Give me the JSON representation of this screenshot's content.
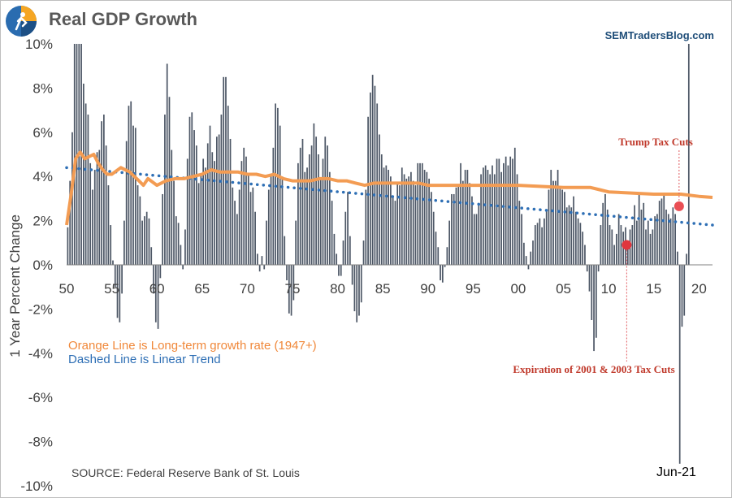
{
  "header": {
    "title": "Real GDP Growth",
    "site": "SEMTradersBlog.com"
  },
  "chart_data": {
    "type": "bar",
    "title": "Real GDP Growth",
    "ylabel": "1 Year Percent Change",
    "ylim": [
      -10,
      10
    ],
    "yticks": [
      "10%",
      "8%",
      "6%",
      "4%",
      "2%",
      "0%",
      "-2%",
      "-4%",
      "-6%",
      "-8%",
      "-10%"
    ],
    "xlim": [
      1950,
      2021.5
    ],
    "xticks": [
      {
        "year": 1950,
        "label": "50"
      },
      {
        "year": 1955,
        "label": "55"
      },
      {
        "year": 1960,
        "label": "60"
      },
      {
        "year": 1965,
        "label": "65"
      },
      {
        "year": 1970,
        "label": "70"
      },
      {
        "year": 1975,
        "label": "75"
      },
      {
        "year": 1980,
        "label": "80"
      },
      {
        "year": 1985,
        "label": "85"
      },
      {
        "year": 1990,
        "label": "90"
      },
      {
        "year": 1995,
        "label": "95"
      },
      {
        "year": 2000,
        "label": "00"
      },
      {
        "year": 2005,
        "label": "05"
      },
      {
        "year": 2010,
        "label": "10"
      },
      {
        "year": 2015,
        "label": "15"
      },
      {
        "year": 2020,
        "label": "20"
      }
    ],
    "bars": {
      "name": "1 Year Percent Change",
      "color": "#4d5766",
      "start_year": 1950,
      "step": 0.25,
      "values": [
        1.7,
        3.8,
        6.0,
        10.0,
        10.0,
        10.0,
        10.0,
        8.2,
        7.3,
        6.8,
        4.6,
        3.4,
        4.3,
        5.1,
        5.2,
        6.5,
        6.8,
        5.4,
        3.6,
        1.8,
        0.2,
        -1.0,
        -2.4,
        -2.6,
        -1.3,
        2.0,
        5.6,
        7.2,
        7.4,
        6.3,
        6.2,
        3.6,
        3.1,
        2.0,
        2.2,
        2.4,
        2.1,
        0.8,
        -1.3,
        -2.6,
        -2.9,
        -0.6,
        3.2,
        6.8,
        9.1,
        7.6,
        5.2,
        3.8,
        2.2,
        1.9,
        0.9,
        -0.2,
        1.6,
        4.8,
        6.7,
        6.9,
        6.1,
        5.4,
        3.7,
        4.1,
        4.8,
        4.4,
        5.5,
        6.3,
        5.1,
        4.7,
        5.8,
        5.9,
        6.8,
        8.5,
        8.5,
        7.2,
        5.7,
        3.5,
        2.9,
        2.3,
        3.4,
        4.7,
        5.3,
        4.9,
        4.1,
        3.3,
        3.5,
        2.4,
        0.5,
        -0.3,
        0.4,
        -0.2,
        2.0,
        3.4,
        4.1,
        5.3,
        7.3,
        7.1,
        6.3,
        4.0,
        1.3,
        -0.7,
        -2.2,
        -2.3,
        -1.6,
        2.0,
        4.6,
        5.3,
        5.7,
        4.2,
        4.4,
        5.0,
        5.4,
        6.4,
        5.8,
        5.0,
        3.9,
        4.8,
        5.8,
        5.4,
        4.2,
        2.9,
        1.4,
        0.5,
        -0.5,
        -0.5,
        1.1,
        2.4,
        3.3,
        1.3,
        -0.9,
        -2.1,
        -2.6,
        -2.3,
        -1.7,
        1.1,
        3.4,
        6.7,
        7.8,
        8.6,
        8.1,
        7.3,
        5.9,
        5.0,
        4.4,
        4.5,
        4.3,
        4.0,
        3.1,
        2.9,
        3.7,
        3.6,
        4.4,
        4.1,
        3.9,
        4.0,
        4.2,
        3.8,
        3.6,
        4.6,
        4.6,
        4.6,
        4.3,
        4.2,
        3.9,
        3.3,
        2.4,
        1.5,
        0.8,
        -0.7,
        -0.8,
        -0.1,
        0.8,
        2.0,
        3.2,
        3.2,
        3.5,
        3.6,
        4.6,
        3.8,
        4.3,
        4.3,
        3.7,
        3.1,
        2.3,
        2.3,
        2.8,
        4.1,
        4.4,
        4.5,
        4.3,
        4.1,
        4.5,
        4.1,
        4.8,
        4.8,
        4.2,
        4.6,
        4.9,
        4.5,
        4.9,
        4.8,
        5.3,
        4.1,
        2.9,
        2.3,
        1.0,
        0.4,
        -0.2,
        0.6,
        1.1,
        1.8,
        1.9,
        2.1,
        1.7,
        2.1,
        2.5,
        3.4,
        4.3,
        3.8,
        3.8,
        4.3,
        3.5,
        3.4,
        3.3,
        2.6,
        2.7,
        2.6,
        3.1,
        2.4,
        2.1,
        1.9,
        1.5,
        0.9,
        -0.3,
        -1.2,
        -2.5,
        -3.9,
        -3.3,
        -0.3,
        1.8,
        2.8,
        3.2,
        2.5,
        1.8,
        1.6,
        0.9,
        1.4,
        2.3,
        1.8,
        1.5,
        1.7,
        0.7,
        1.6,
        1.8,
        2.7,
        2.0,
        3.2,
        2.5,
        2.8,
        1.6,
        2.0,
        1.4,
        1.6,
        2.2,
        2.3,
        2.9,
        3.0,
        3.2,
        2.5,
        2.3,
        2.1,
        2.6,
        2.3,
        0.6,
        -9.0,
        -2.8,
        -2.3,
        0.5,
        10.0
      ]
    },
    "long_term_line": {
      "name": "Long-term growth rate (1947+)",
      "color": "#f39c53",
      "x": [
        1950,
        1950.5,
        1951,
        1951.5,
        1952,
        1953,
        1953.5,
        1954,
        1954.5,
        1955,
        1956,
        1957,
        1958,
        1958.5,
        1959,
        1960,
        1961,
        1962,
        1963,
        1964,
        1965,
        1966,
        1967,
        1968,
        1969,
        1970,
        1971,
        1972,
        1973,
        1974,
        1975,
        1976,
        1977,
        1978,
        1979,
        1980,
        1981,
        1982,
        1983,
        1984,
        1985,
        1986,
        1987,
        1988,
        1989,
        1990,
        1995,
        2000,
        2005,
        2008,
        2009,
        2010,
        2015,
        2018,
        2020,
        2021.5
      ],
      "y": [
        1.8,
        3.2,
        4.8,
        5.1,
        4.8,
        5.0,
        4.6,
        4.3,
        4.1,
        4.1,
        4.4,
        4.2,
        3.8,
        3.6,
        3.9,
        3.6,
        3.8,
        3.9,
        3.9,
        4.0,
        4.1,
        4.3,
        4.2,
        4.2,
        4.2,
        4.1,
        4.1,
        4.0,
        4.1,
        3.9,
        3.8,
        3.8,
        3.8,
        3.9,
        3.9,
        3.8,
        3.8,
        3.7,
        3.6,
        3.7,
        3.7,
        3.7,
        3.7,
        3.7,
        3.7,
        3.6,
        3.6,
        3.6,
        3.5,
        3.5,
        3.4,
        3.3,
        3.2,
        3.2,
        3.1,
        3.05
      ]
    },
    "trend_line": {
      "name": "Linear Trend",
      "color": "#2e6fb5",
      "x": [
        1950,
        2021.5
      ],
      "y": [
        4.4,
        1.8
      ]
    },
    "legend": [
      {
        "text": "Orange Line is Long-term growth rate (1947+)",
        "color": "#f0883a"
      },
      {
        "text": "Dashed Line is Linear Trend",
        "color": "#2e6fb5"
      }
    ],
    "annotations": {
      "trump": {
        "text": "Trump Tax Cuts",
        "year": 2017.8,
        "value": 2.65,
        "color": "#ea4f55"
      },
      "expiration": {
        "text": "Expiration of 2001  & 2003 Tax Cuts",
        "year": 2012.0,
        "value": 0.9,
        "color": "#e0353d"
      },
      "last_date": "Jun-21"
    },
    "source": "SOURCE:  Federal Reserve Bank of St. Louis",
    "grid": false,
    "legend_position": "middle-left"
  }
}
